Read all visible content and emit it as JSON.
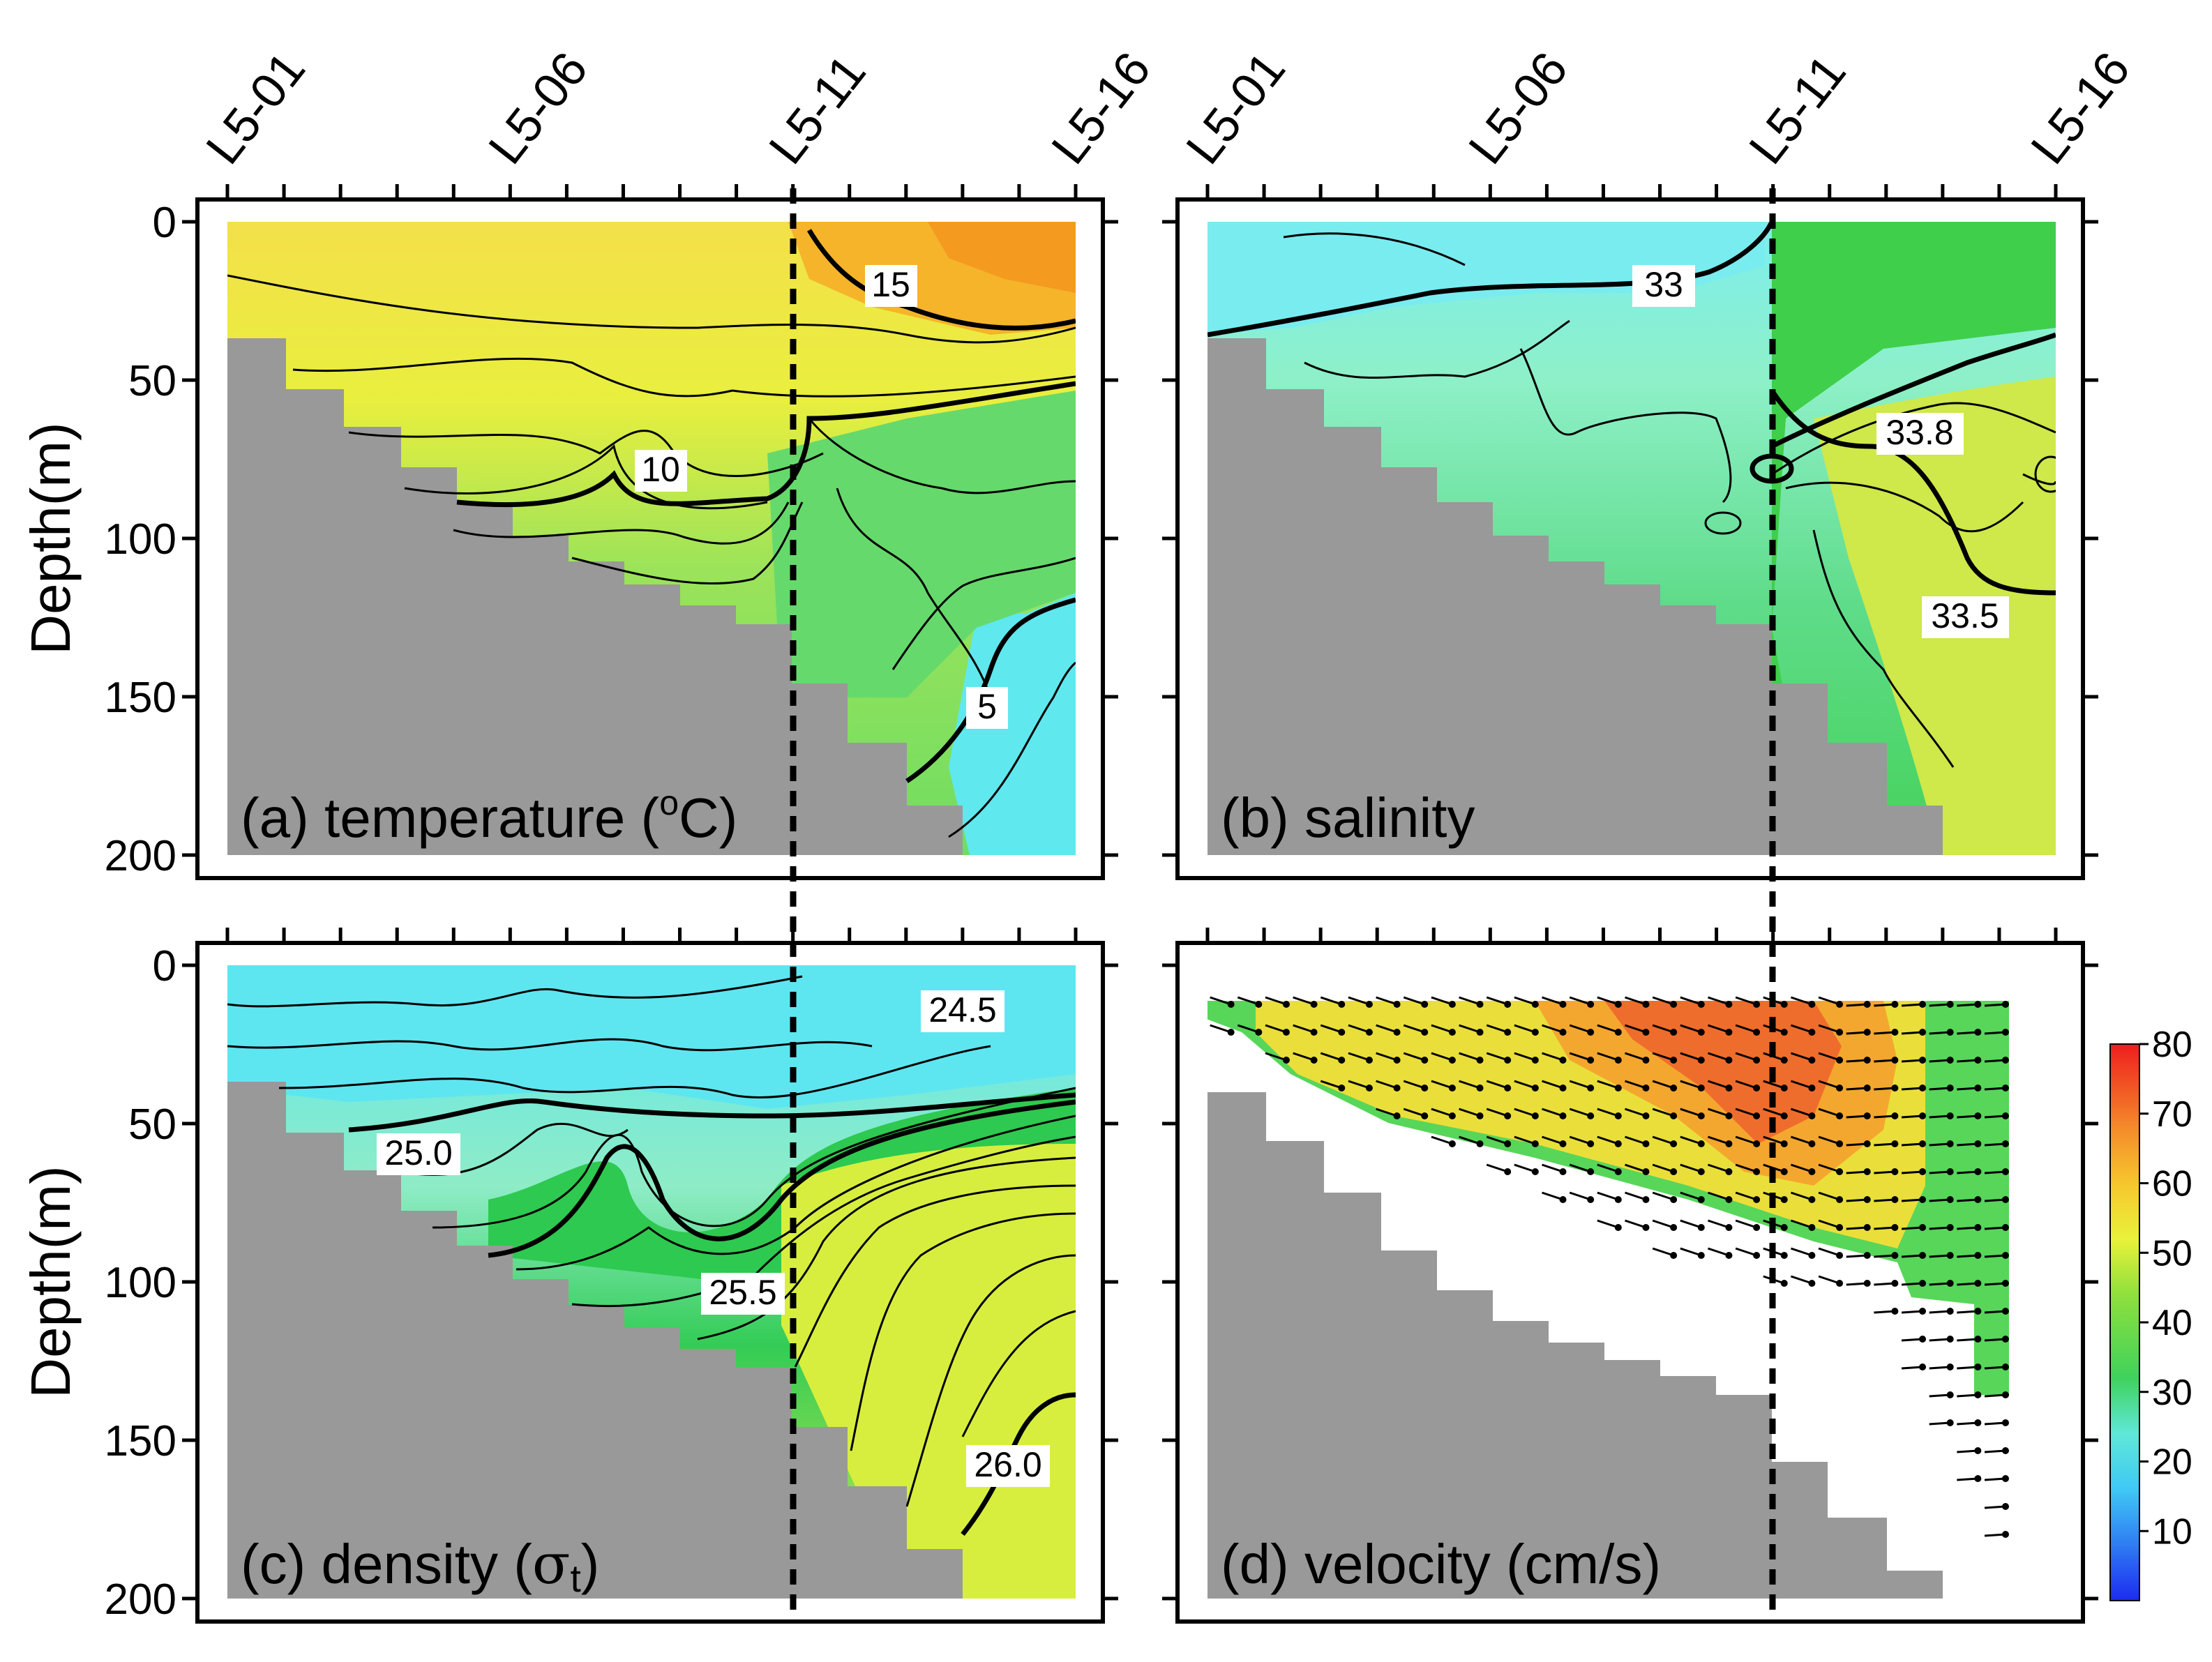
{
  "chart_data": [
    {
      "type": "heatmap",
      "panel": "a",
      "title": "(a) temperature (",
      "title_sup": "o",
      "title_tail": "C)",
      "ylabel": "Depth(m)",
      "ylim": [
        200,
        0
      ],
      "yticks": [
        0,
        50,
        100,
        150,
        200
      ],
      "stations": [
        "L5-01",
        "L5-06",
        "L5-11",
        "L5-16"
      ],
      "contour_labels": [
        "15",
        "10",
        "5"
      ],
      "colors": {
        "surface_east": "#f5a623",
        "surface_west": "#f3e64a",
        "mid": "#7fdc55",
        "deep": "#5fe8ee"
      }
    },
    {
      "type": "heatmap",
      "panel": "b",
      "title": "(b) salinity",
      "ylim": [
        200,
        0
      ],
      "yticks": [
        0,
        50,
        100,
        150,
        200
      ],
      "stations": [
        "L5-01",
        "L5-06",
        "L5-11",
        "L5-16"
      ],
      "contour_labels": [
        "33",
        "33.8",
        "33.5"
      ],
      "colors": {
        "surface_west": "#79ecf0",
        "mid": "#8be8b2",
        "east": "#44d04a",
        "deep_east": "#c8e84a"
      }
    },
    {
      "type": "heatmap",
      "panel": "c",
      "title": "(c) density (",
      "title_sigma": "σ",
      "title_sub": "t",
      "title_tail": ")",
      "ylabel": "Depth(m)",
      "ylim": [
        200,
        0
      ],
      "yticks": [
        0,
        50,
        100,
        150,
        200
      ],
      "contour_labels": [
        "24.5",
        "25.0",
        "25.5",
        "26.0"
      ],
      "colors": {
        "surface": "#5ee6f0",
        "mid": "#8deac0",
        "thermocline": "#2bc94a",
        "deep": "#e8f23a"
      }
    },
    {
      "type": "heatmap",
      "panel": "d",
      "title": "(d) velocity (cm/s)",
      "ylim": [
        200,
        0
      ],
      "yticks": [
        0,
        50,
        100,
        150,
        200
      ],
      "colorbar": {
        "min": 0,
        "max": 80,
        "labels": [
          "80",
          "70",
          "60",
          "50",
          "40",
          "30",
          "20",
          "10"
        ]
      },
      "colors": {
        "high": "#f25a2b",
        "mid": "#f4c230",
        "low": "#57d65a"
      }
    }
  ]
}
